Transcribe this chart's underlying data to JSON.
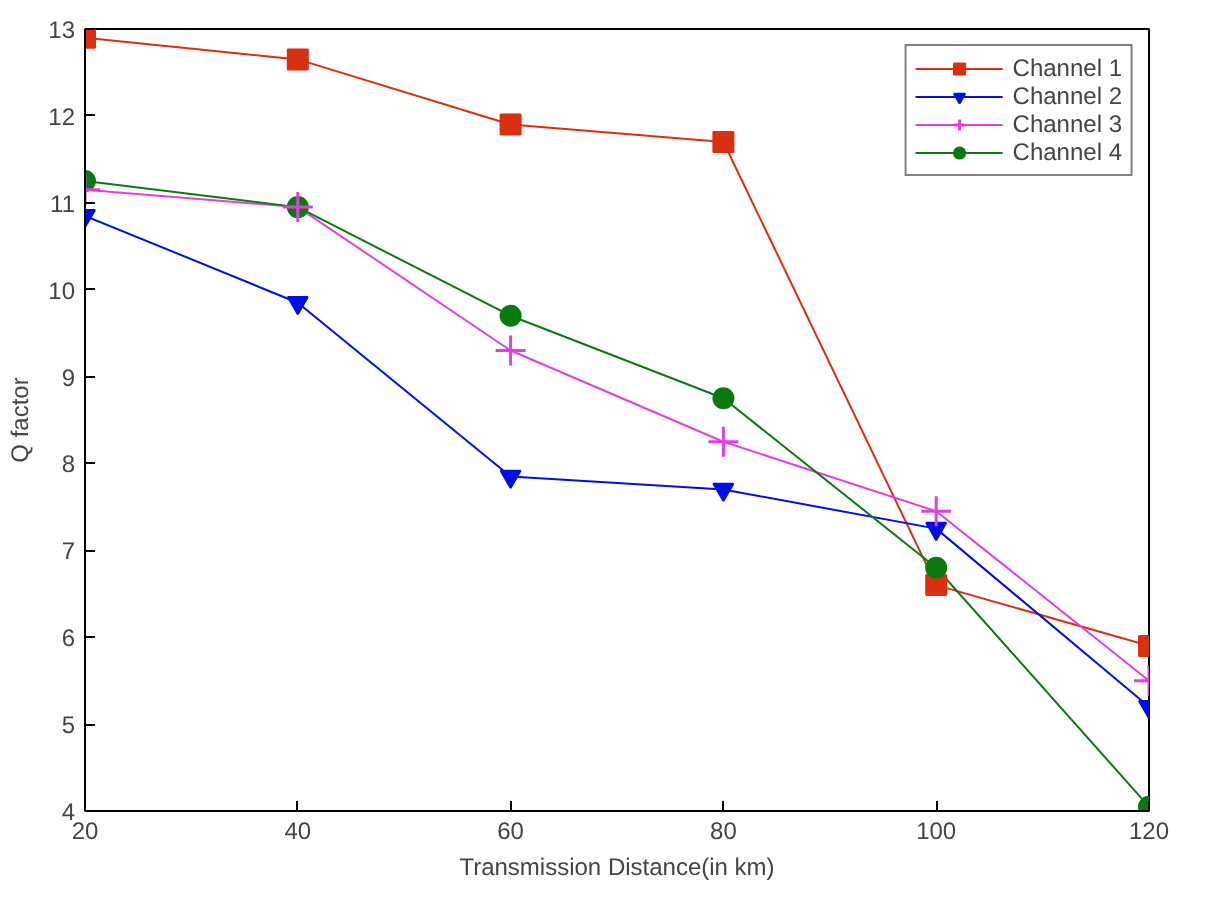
{
  "chart_data": {
    "type": "line",
    "xlabel": "Transmission Distance(in km)",
    "ylabel": "Q factor",
    "x": [
      20,
      40,
      60,
      80,
      100,
      120
    ],
    "xlim": [
      20,
      120
    ],
    "xticks": [
      20,
      40,
      60,
      80,
      100,
      120
    ],
    "ylim": [
      4,
      13
    ],
    "yticks": [
      4,
      5,
      6,
      7,
      8,
      9,
      10,
      11,
      12,
      13
    ],
    "grid": false,
    "legend": "top right",
    "line_style": "solid",
    "series": [
      {
        "name": "Channel 1",
        "color": "#d83010",
        "marker": "square",
        "values": [
          12.9,
          12.65,
          11.9,
          11.7,
          6.6,
          5.9
        ]
      },
      {
        "name": "Channel 2",
        "color": "#0010e0",
        "marker": "triangle",
        "values": [
          10.85,
          9.85,
          7.85,
          7.7,
          7.25,
          5.2
        ]
      },
      {
        "name": "Channel 3",
        "color": "#e040e0",
        "marker": "cross",
        "values": [
          11.15,
          10.95,
          9.3,
          8.25,
          7.45,
          5.5
        ]
      },
      {
        "name": "Channel 4",
        "color": "#0a7a10",
        "marker": "circle",
        "values": [
          11.25,
          10.95,
          9.7,
          8.75,
          6.8,
          4.05
        ]
      }
    ]
  }
}
